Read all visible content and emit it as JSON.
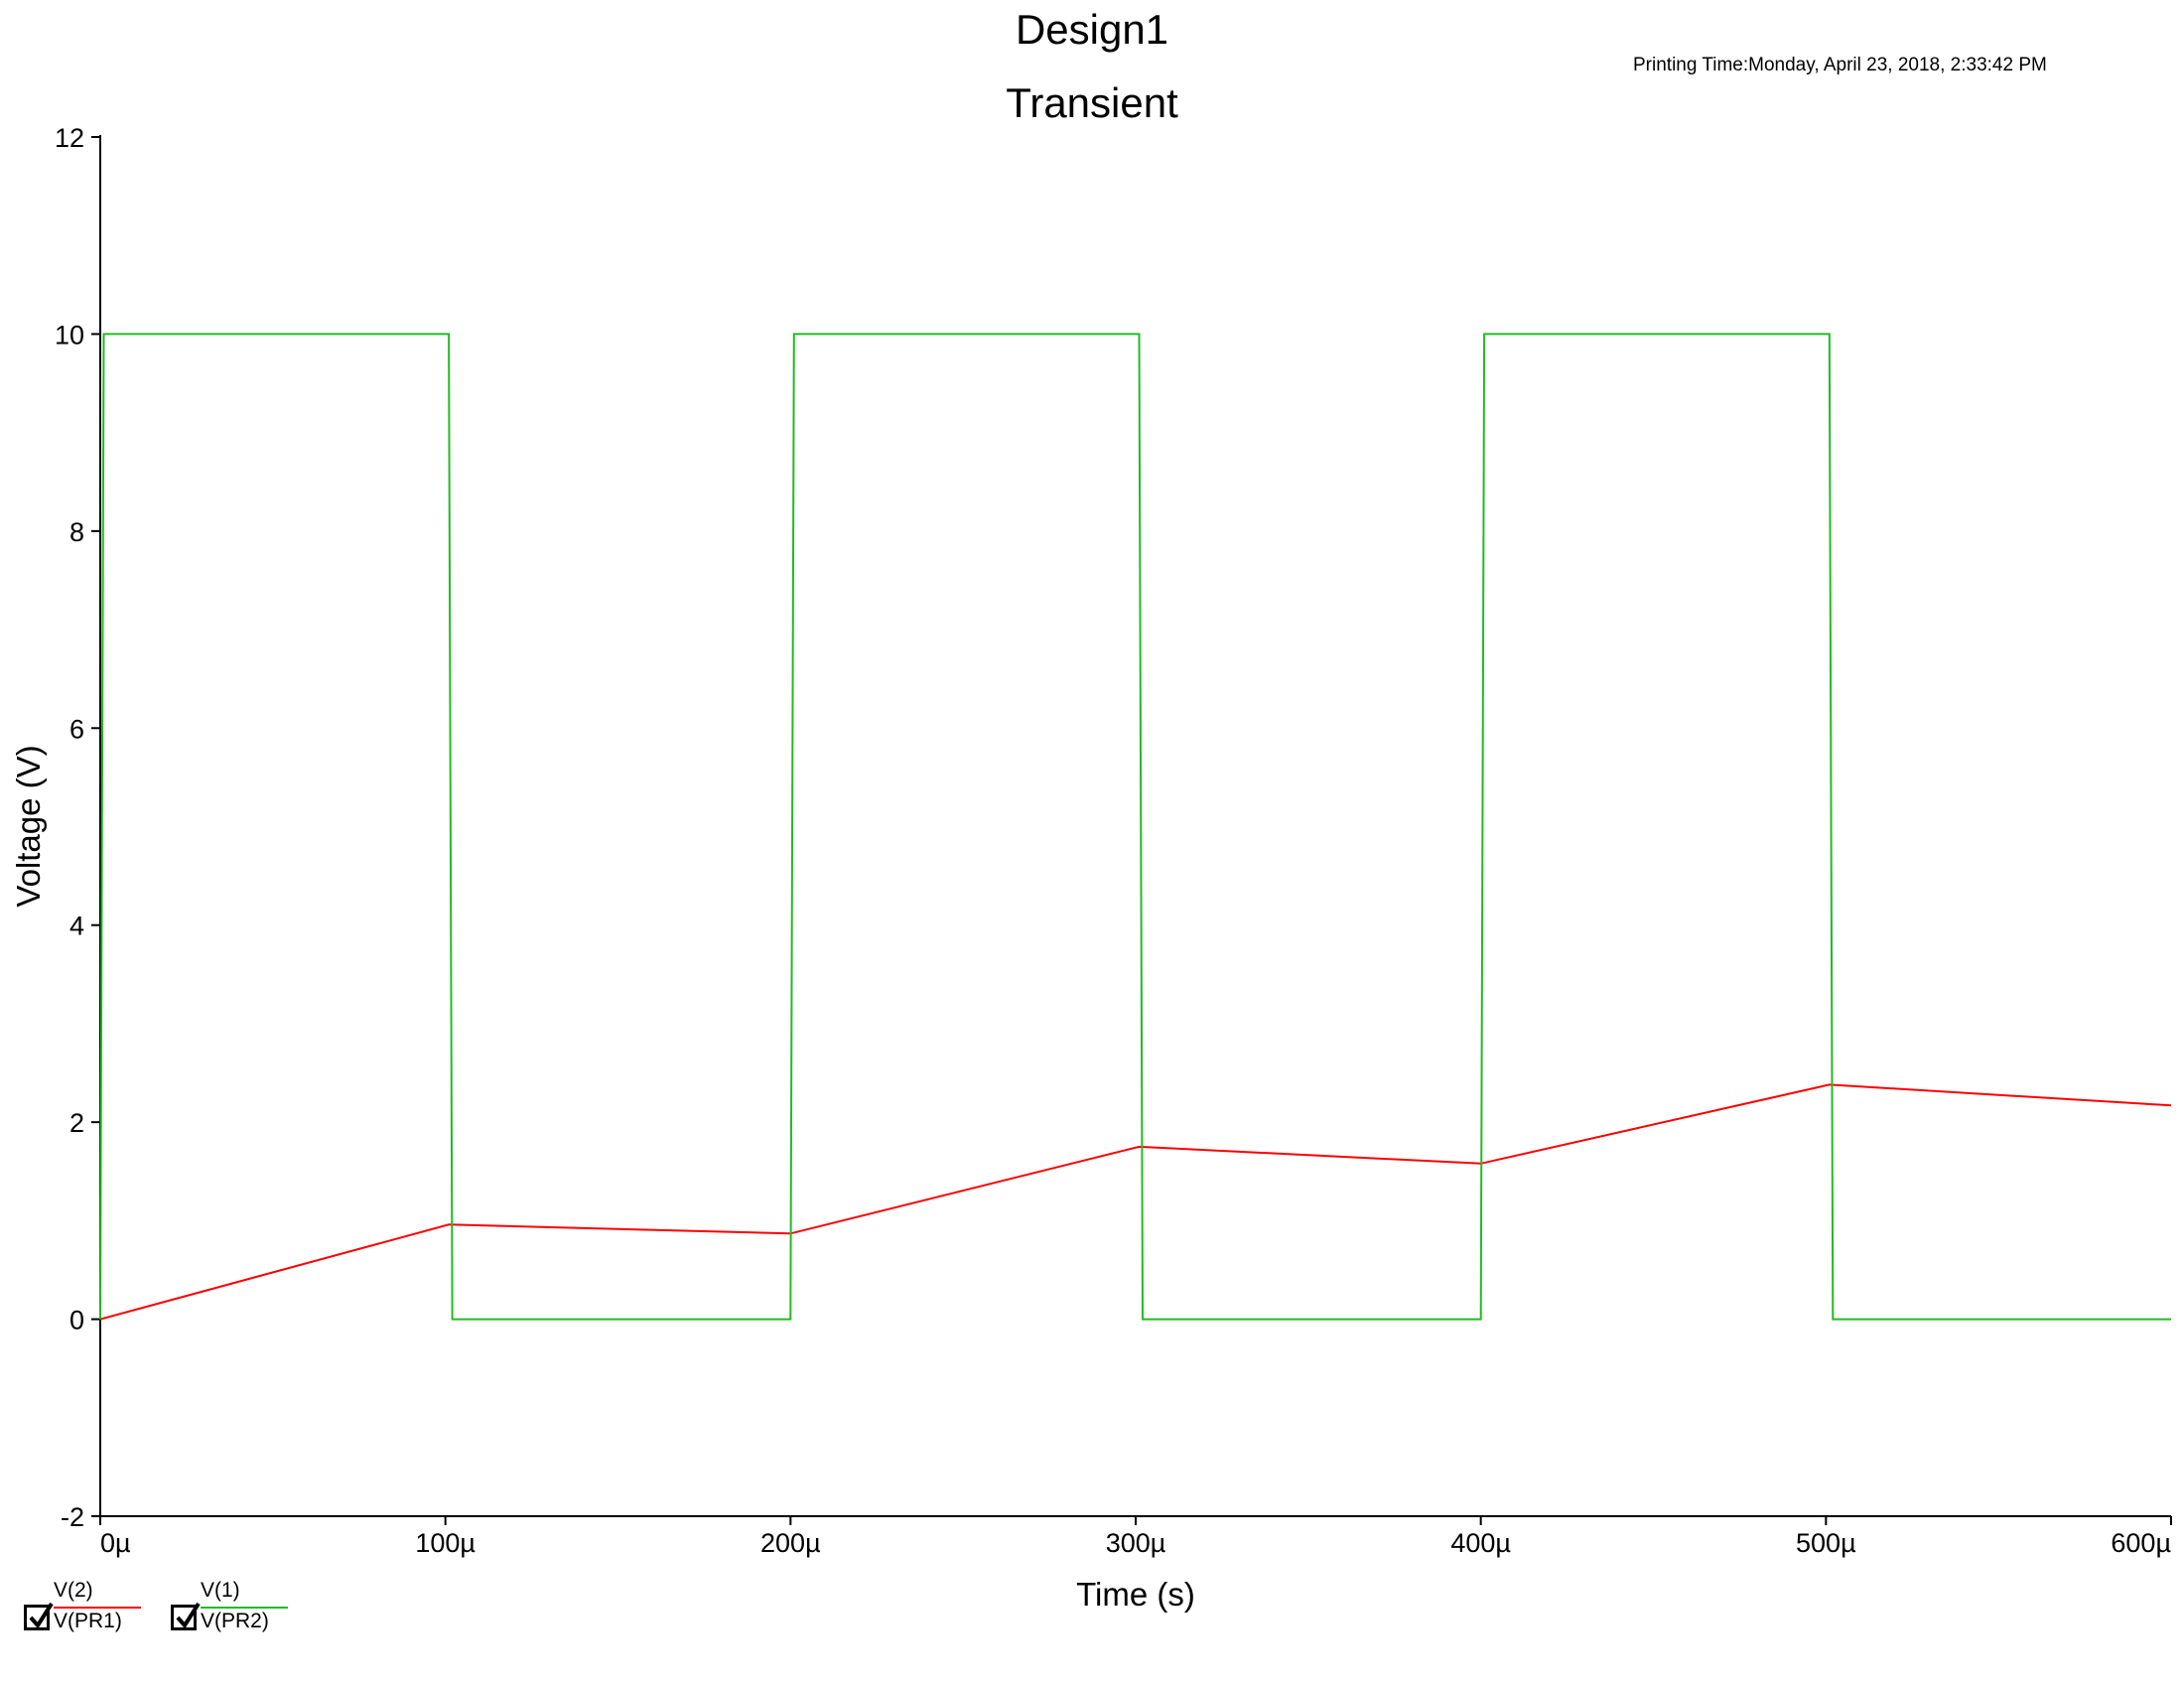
{
  "chart_data": {
    "type": "line",
    "title": "Design1",
    "subtitle": "Transient",
    "printing_time": "Printing Time:Monday, April 23, 2018, 2:33:42 PM",
    "xlabel": "Time (s)",
    "ylabel": "Voltage (V)",
    "xlim": [
      0,
      600
    ],
    "ylim": [
      -2,
      12
    ],
    "x_tick_labels": [
      "0µ",
      "100µ",
      "200µ",
      "300µ",
      "400µ",
      "500µ",
      "600µ"
    ],
    "y_ticks": [
      -2,
      0,
      2,
      4,
      6,
      8,
      10,
      12
    ],
    "x_unit": "µs",
    "grid": false,
    "legend_placement": "bottom-left",
    "series": [
      {
        "name": "V(PR1)",
        "probe": "V(2)",
        "color": "#ff0000",
        "x": [
          0,
          101,
          200,
          301,
          400,
          501,
          600
        ],
        "y": [
          0,
          0.96,
          0.87,
          1.75,
          1.58,
          2.38,
          2.17
        ]
      },
      {
        "name": "V(PR2)",
        "probe": "V(1)",
        "color": "#22bb22",
        "x": [
          0,
          1,
          101,
          102,
          200,
          201,
          301,
          302,
          400,
          401,
          501,
          502,
          600
        ],
        "y": [
          0,
          10,
          10,
          0,
          0,
          10,
          10,
          0,
          0,
          10,
          10,
          0,
          0
        ]
      }
    ]
  }
}
